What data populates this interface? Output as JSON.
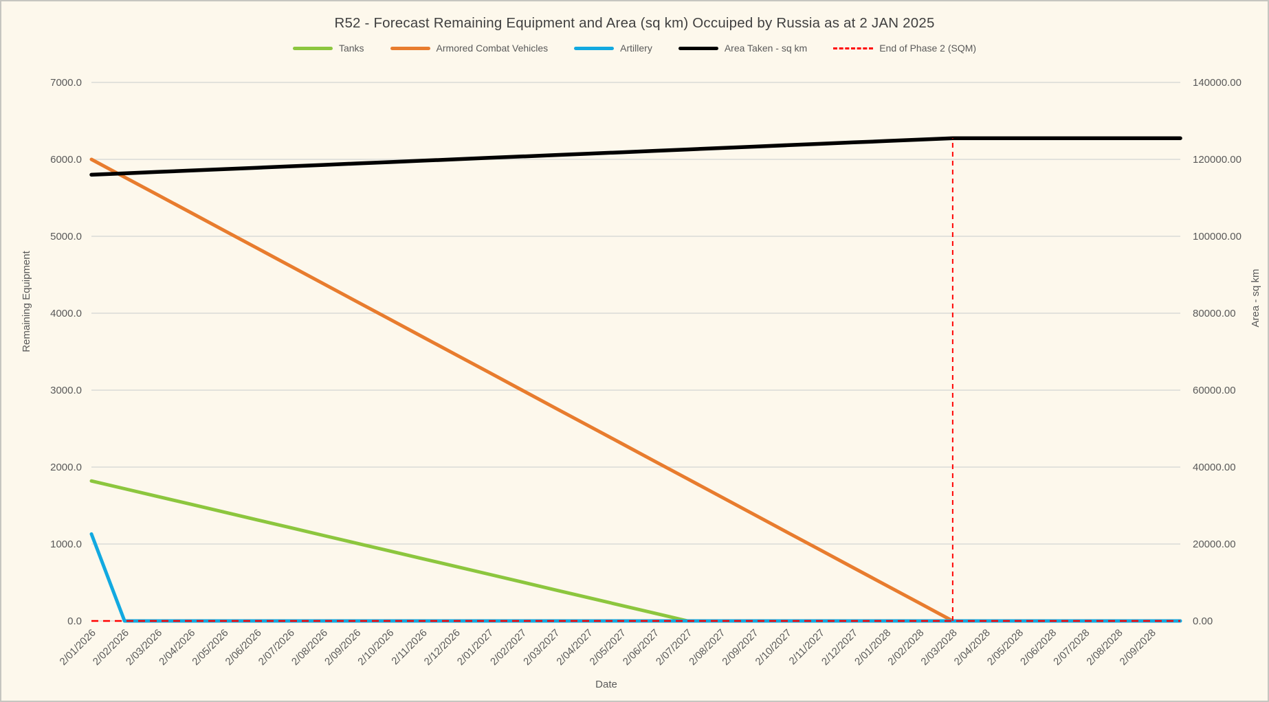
{
  "title": "R52 - Forecast Remaining Equipment and Area (sq km) Occuiped by Russia as at 2 JAN 2025",
  "legend": [
    {
      "label": "Tanks",
      "color": "#8CC63E",
      "dashed": false
    },
    {
      "label": "Armored Combat Vehicles",
      "color": "#E87C2E",
      "dashed": false
    },
    {
      "label": "Artillery",
      "color": "#12A9E0",
      "dashed": false
    },
    {
      "label": "Area Taken - sq km",
      "color": "#000000",
      "dashed": false
    },
    {
      "label": "End of Phase 2 (SQM)",
      "color": "#FF0000",
      "dashed": true
    }
  ],
  "chart_data": {
    "type": "line",
    "title": "R52 - Forecast Remaining Equipment and Area (sq km) Occuiped by Russia as at 2 JAN 2025",
    "xlabel": "Date",
    "ylabel_left": "Remaining Equipment",
    "ylabel_right": "Area - sq km",
    "y_left": {
      "min": 0,
      "max": 7000,
      "step": 1000
    },
    "y_right": {
      "min": 0,
      "max": 140000,
      "step": 20000
    },
    "y_left_ticks": [
      "0.0",
      "1000.0",
      "2000.0",
      "3000.0",
      "4000.0",
      "5000.0",
      "6000.0",
      "7000.0"
    ],
    "y_right_ticks": [
      "0.00",
      "20000.00",
      "40000.00",
      "60000.00",
      "80000.00",
      "100000.00",
      "120000.00",
      "140000.00"
    ],
    "grid": true,
    "legend_position": "top",
    "categories": [
      "2/01/2026",
      "2/02/2026",
      "2/03/2026",
      "2/04/2026",
      "2/05/2026",
      "2/06/2026",
      "2/07/2026",
      "2/08/2026",
      "2/09/2026",
      "2/10/2026",
      "2/11/2026",
      "2/12/2026",
      "2/01/2027",
      "2/02/2027",
      "2/03/2027",
      "2/04/2027",
      "2/05/2027",
      "2/06/2027",
      "2/07/2027",
      "2/08/2027",
      "2/09/2027",
      "2/10/2027",
      "2/11/2027",
      "2/12/2027",
      "2/01/2028",
      "2/02/2028",
      "2/03/2028",
      "2/04/2028",
      "2/05/2028",
      "2/06/2028",
      "2/07/2028",
      "2/08/2028",
      "2/09/2028"
    ],
    "series": [
      {
        "name": "Tanks",
        "axis": "left",
        "color": "#8CC63E",
        "dashed": false,
        "width": 5,
        "extend_to_edge": false,
        "render": "line",
        "values": [
          1820,
          1719,
          1618,
          1517,
          1416,
          1314,
          1213,
          1112,
          1011,
          910,
          809,
          708,
          607,
          506,
          404,
          303,
          202,
          101,
          0,
          0,
          0,
          0,
          0,
          0,
          0,
          0,
          0,
          0,
          0,
          0,
          0,
          0,
          0
        ]
      },
      {
        "name": "Armored Combat Vehicles",
        "axis": "left",
        "color": "#E87C2E",
        "dashed": false,
        "width": 5,
        "extend_to_edge": false,
        "render": "line",
        "values": [
          6000,
          5769,
          5538,
          5308,
          5077,
          4846,
          4615,
          4385,
          4154,
          3923,
          3692,
          3462,
          3231,
          3000,
          2769,
          2538,
          2308,
          2077,
          1846,
          1615,
          1385,
          1154,
          923,
          692,
          462,
          231,
          0,
          0,
          0,
          0,
          0,
          0,
          0
        ]
      },
      {
        "name": "Artillery",
        "axis": "left",
        "color": "#12A9E0",
        "dashed": false,
        "width": 5,
        "extend_to_edge": true,
        "render": "line",
        "values": [
          1130,
          0,
          0,
          0,
          0,
          0,
          0,
          0,
          0,
          0,
          0,
          0,
          0,
          0,
          0,
          0,
          0,
          0,
          0,
          0,
          0,
          0,
          0,
          0,
          0,
          0,
          0,
          0,
          0,
          0,
          0,
          0,
          0
        ]
      },
      {
        "name": "Area Taken - sq km",
        "axis": "right",
        "color": "#000000",
        "dashed": false,
        "width": 5.5,
        "extend_to_edge": true,
        "render": "line",
        "values": [
          116000,
          116365,
          116731,
          117096,
          117462,
          117827,
          118192,
          118558,
          118923,
          119288,
          119654,
          120019,
          120385,
          120750,
          121115,
          121481,
          121846,
          122212,
          122577,
          122942,
          123308,
          123673,
          124038,
          124404,
          124769,
          125135,
          125500,
          125500,
          125500,
          125500,
          125500,
          125500,
          125500
        ]
      },
      {
        "name": "End of Phase 2 (SQM)",
        "axis": "right",
        "color": "#FF0000",
        "dashed": true,
        "width": 2.5,
        "extend_to_edge": true,
        "render": "spike",
        "values": [
          0,
          0,
          0,
          0,
          0,
          0,
          0,
          0,
          0,
          0,
          0,
          0,
          0,
          0,
          0,
          0,
          0,
          0,
          0,
          0,
          0,
          0,
          0,
          0,
          0,
          0,
          125500,
          0,
          0,
          0,
          0,
          0,
          0
        ]
      }
    ]
  }
}
